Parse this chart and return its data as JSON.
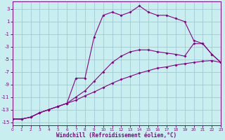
{
  "bg_color": "#c8eef0",
  "grid_color": "#a0c8d8",
  "line_color": "#880088",
  "xlim": [
    0,
    23
  ],
  "ylim": [
    -15.5,
    4.2
  ],
  "yticks": [
    3,
    1,
    -1,
    -3,
    -5,
    -7,
    -9,
    -11,
    -13,
    -15
  ],
  "xticks": [
    0,
    1,
    2,
    3,
    4,
    5,
    6,
    7,
    8,
    9,
    10,
    11,
    12,
    13,
    14,
    15,
    16,
    17,
    18,
    19,
    20,
    21,
    22,
    23
  ],
  "xlabel": "Windchill (Refroidissement éolien,°C)",
  "line1_x": [
    0,
    1,
    2,
    3,
    4,
    5,
    6,
    7,
    8,
    9,
    10,
    11,
    12,
    13,
    14,
    15,
    16,
    17,
    18,
    19,
    20,
    21,
    22,
    23
  ],
  "line1_y": [
    -14.5,
    -14.5,
    -14.2,
    -13.5,
    -13.0,
    -12.5,
    -12.0,
    -11.5,
    -10.8,
    -10.2,
    -9.5,
    -8.8,
    -8.2,
    -7.7,
    -7.2,
    -6.8,
    -6.4,
    -6.2,
    -5.9,
    -5.7,
    -5.5,
    -5.3,
    -5.2,
    -5.5
  ],
  "line2_x": [
    0,
    1,
    2,
    3,
    4,
    5,
    6,
    7,
    8,
    9,
    10,
    11,
    12,
    13,
    14,
    15,
    16,
    17,
    18,
    19,
    20,
    21,
    22,
    23
  ],
  "line2_y": [
    -14.5,
    -14.5,
    -14.2,
    -13.5,
    -13.0,
    -12.5,
    -12.0,
    -11.0,
    -10.0,
    -8.5,
    -7.0,
    -5.5,
    -4.5,
    -3.8,
    -3.5,
    -3.5,
    -3.8,
    -4.0,
    -4.2,
    -4.5,
    -2.5,
    -2.5,
    -4.2,
    -5.5
  ],
  "line3_x": [
    0,
    1,
    2,
    3,
    4,
    5,
    6,
    7,
    8,
    9,
    10,
    11,
    12,
    13,
    14,
    15,
    16,
    17,
    18,
    19,
    20,
    21,
    22,
    23
  ],
  "line3_y": [
    -14.5,
    -14.5,
    -14.2,
    -13.5,
    -13.0,
    -12.5,
    -12.0,
    -8.0,
    -8.0,
    -1.5,
    2.0,
    2.5,
    2.0,
    2.5,
    3.5,
    2.5,
    2.0,
    2.0,
    1.5,
    1.0,
    -2.0,
    -2.5,
    -4.2,
    -5.5
  ]
}
